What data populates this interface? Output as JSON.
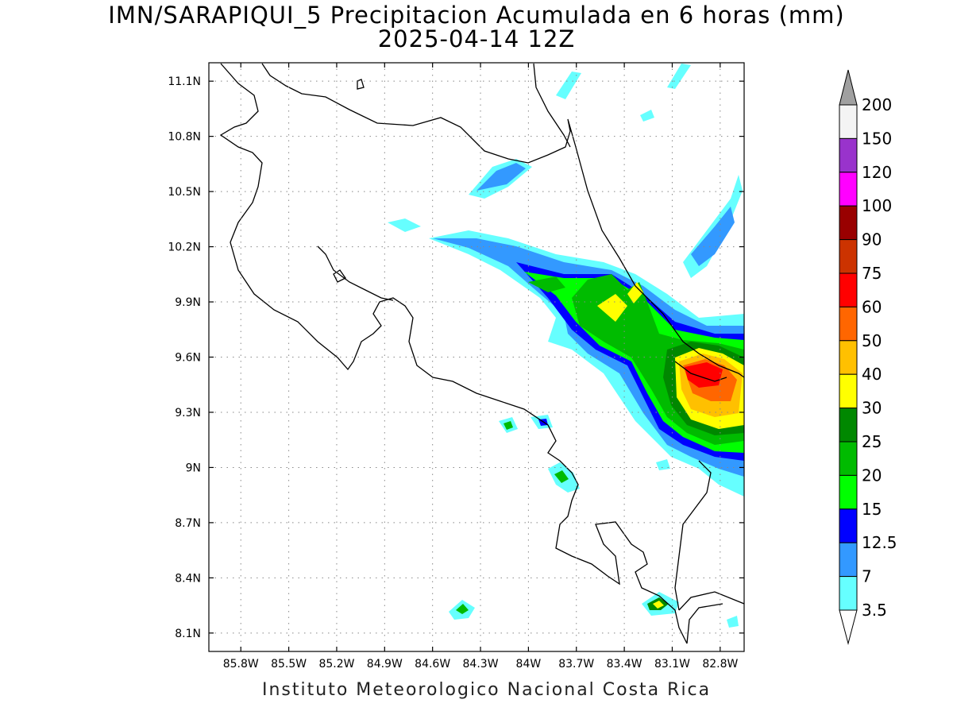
{
  "title": {
    "line1": "IMN/SARAPIQUI_5 Precipitacion Acumulada en 6 horas (mm)",
    "line2": "2025-04-14 12Z"
  },
  "footer": "Instituto Meteorologico Nacional Costa Rica",
  "map": {
    "lon_range": [
      -86.0,
      -82.65
    ],
    "lat_range": [
      8.0,
      11.2
    ],
    "x_ticks": [
      "85.8W",
      "85.5W",
      "85.2W",
      "84.9W",
      "84.6W",
      "84.3W",
      "84W",
      "83.7W",
      "83.4W",
      "83.1W",
      "82.8W"
    ],
    "x_tick_values": [
      -85.8,
      -85.5,
      -85.2,
      -84.9,
      -84.6,
      -84.3,
      -84.0,
      -83.7,
      -83.4,
      -83.1,
      -82.8
    ],
    "y_ticks": [
      "11.1N",
      "10.8N",
      "10.5N",
      "10.2N",
      "9.9N",
      "9.6N",
      "9.3N",
      "9N",
      "8.7N",
      "8.4N",
      "8.1N"
    ],
    "y_tick_values": [
      11.1,
      10.8,
      10.5,
      10.2,
      9.9,
      9.6,
      9.3,
      9.0,
      8.7,
      8.4,
      8.1
    ],
    "grid": "dotted"
  },
  "colorbar": {
    "labels": [
      "200",
      "150",
      "120",
      "100",
      "90",
      "75",
      "60",
      "50",
      "40",
      "30",
      "25",
      "20",
      "15",
      "12.5",
      "7",
      "3.5"
    ],
    "colors": [
      "#a0a0a0",
      "#f4f4f4",
      "#9933cc",
      "#ff00ff",
      "#990000",
      "#cc3300",
      "#ff0000",
      "#ff6600",
      "#ffc000",
      "#ffff00",
      "#008800",
      "#00bb00",
      "#00ff00",
      "#0000ff",
      "#3399ff",
      "#66ffff"
    ]
  }
}
